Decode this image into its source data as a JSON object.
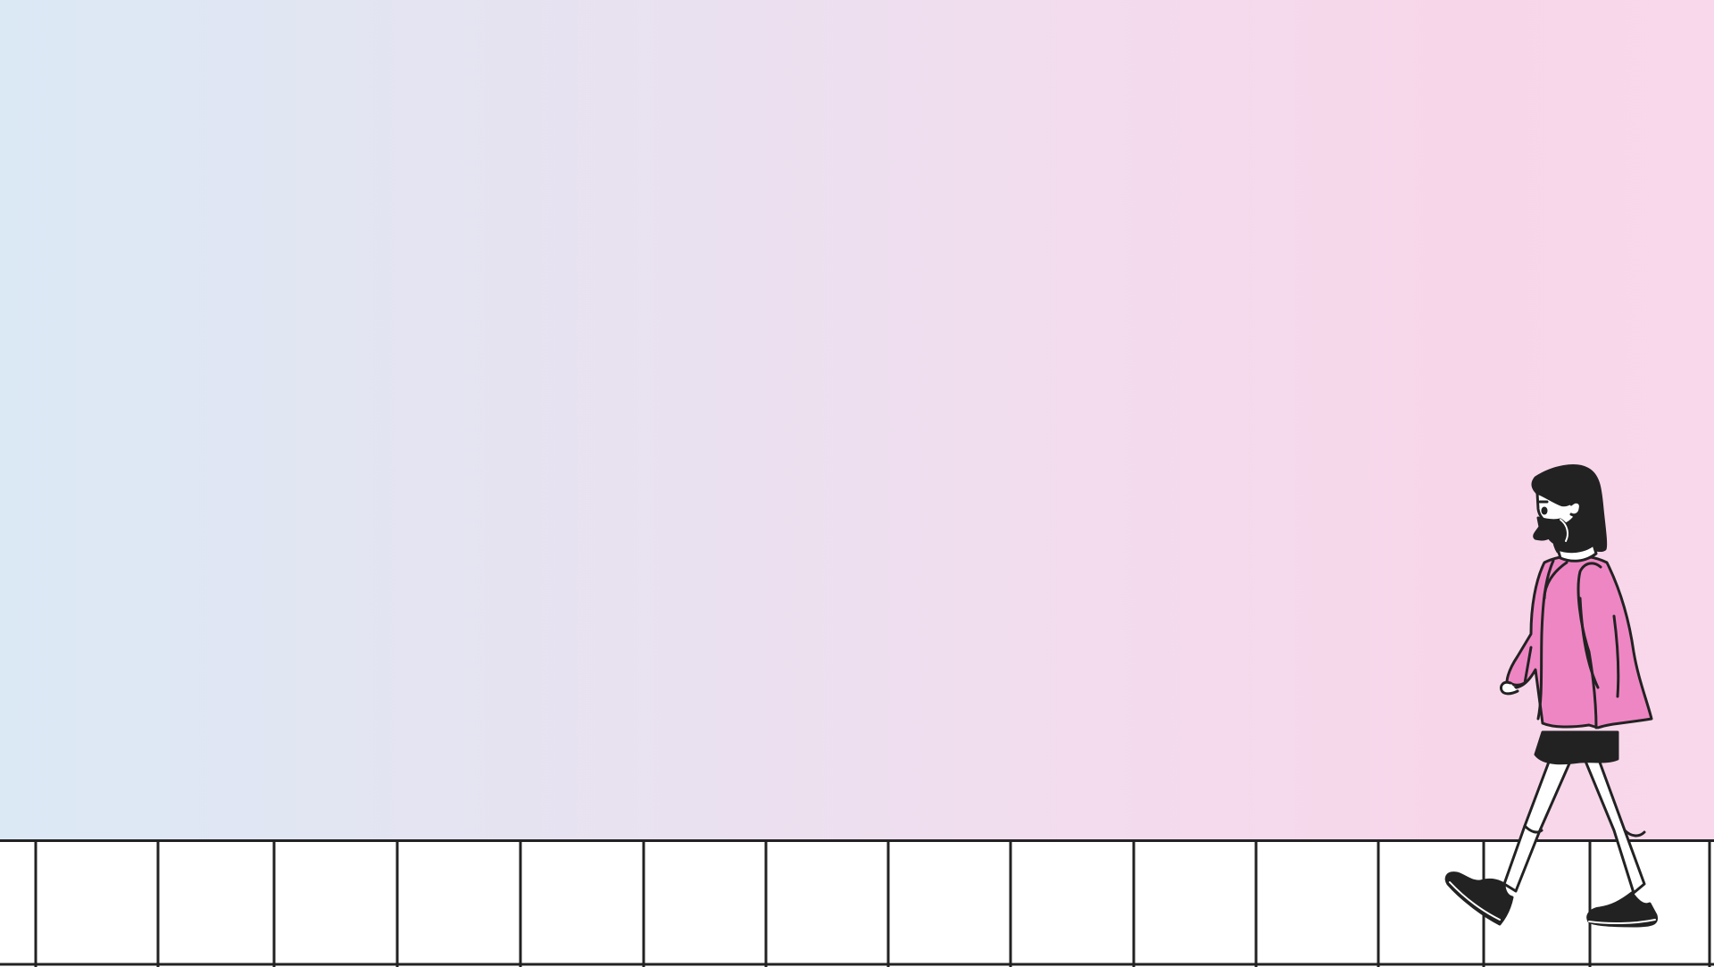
{
  "scene": {
    "background_gradient": [
      "#dbe9f5",
      "#e6e3f1",
      "#f1ddee",
      "#f8d6ea"
    ],
    "ground_color": "#ffffff",
    "line_color": "#222222",
    "sidewalk_tile_count": 15,
    "figure": {
      "description_icon": "walking-woman-illustration",
      "colors": {
        "coat": "#ef86c4",
        "hair": "#222222",
        "skirt": "#222222",
        "mask": "#222222",
        "shoes": "#222222",
        "socks": "#ffffff",
        "skin": "#ffffff"
      }
    }
  }
}
